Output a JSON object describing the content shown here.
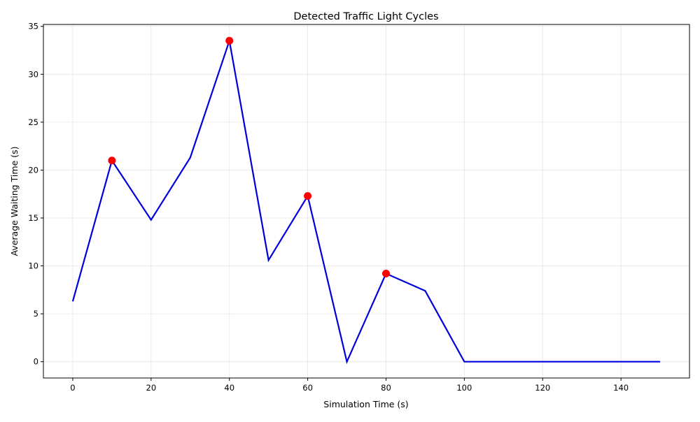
{
  "chart_data": {
    "type": "line",
    "title": "Detected Traffic Light Cycles",
    "xlabel": "Simulation Time (s)",
    "ylabel": "Average Waiting Time (s)",
    "xlim": [
      -7.5,
      157.5
    ],
    "ylim": [
      -1.7,
      35.2
    ],
    "xticks": [
      0,
      20,
      40,
      60,
      80,
      100,
      120,
      140
    ],
    "yticks": [
      0,
      5,
      10,
      15,
      20,
      25,
      30,
      35
    ],
    "grid": true,
    "series": [
      {
        "x": [
          0,
          10,
          20,
          30,
          40,
          50,
          60,
          70,
          80,
          90,
          100,
          110,
          120,
          130,
          140,
          150
        ],
        "values": [
          6.3,
          21.0,
          14.8,
          21.3,
          33.5,
          10.6,
          17.3,
          0.0,
          9.2,
          7.4,
          0.0,
          0.0,
          0.0,
          0.0,
          0.0,
          0.0
        ],
        "color": "#0000dd"
      }
    ],
    "highlight_points": {
      "x": [
        10,
        40,
        60,
        80
      ],
      "values": [
        21.0,
        33.5,
        17.3,
        9.2
      ],
      "color": "#ff0000"
    }
  }
}
